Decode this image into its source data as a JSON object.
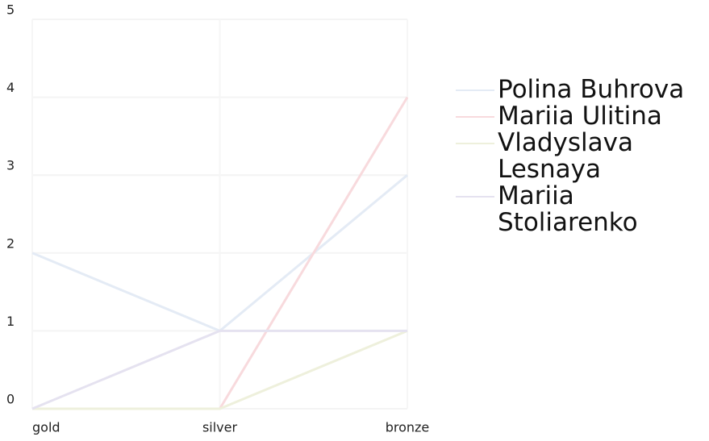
{
  "chart_data": {
    "type": "line",
    "categories": [
      "gold",
      "silver",
      "bronze"
    ],
    "series": [
      {
        "name": "Polina Buhrova",
        "color": "#e4ebf5",
        "values": [
          2,
          1,
          3
        ]
      },
      {
        "name": "Mariia Ulitina",
        "color": "#f8dadd",
        "values": [
          0,
          0,
          4
        ]
      },
      {
        "name": "Vladyslava Lesnaya",
        "color": "#eef0dc",
        "values": [
          0,
          0,
          1
        ]
      },
      {
        "name": "Mariia Stoliarenko",
        "color": "#e5e2f0",
        "values": [
          0,
          1,
          1
        ]
      }
    ],
    "ylim": [
      0,
      5
    ],
    "yticks": [
      0,
      1,
      2,
      3,
      4,
      5
    ],
    "grid": true,
    "legend": "right"
  }
}
